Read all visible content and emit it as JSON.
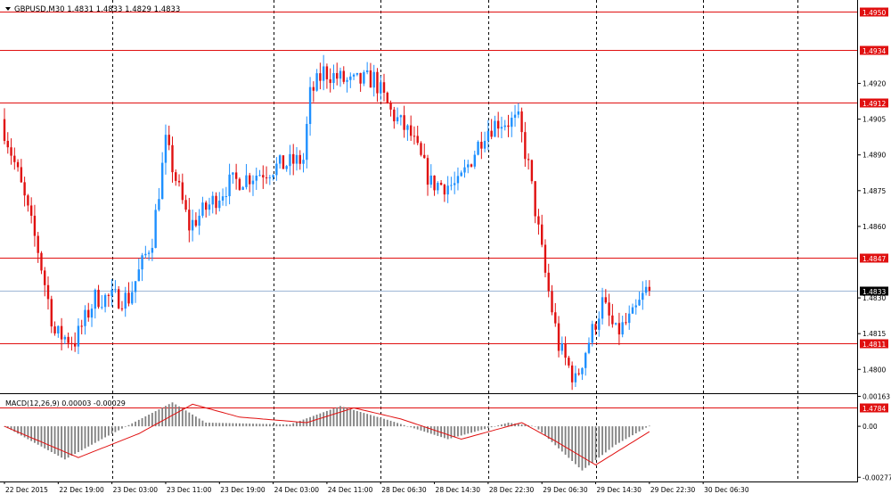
{
  "window": {
    "symbol_header": "GBPUSD,M30  1.4831 1.4833 1.4829 1.4833"
  },
  "indicator": {
    "header": "MACD(12,26,9) 0.00003 -0.00029",
    "scale_labels": [
      {
        "value": 0.00163,
        "label": "0.00163"
      },
      {
        "value": 0.0,
        "label": "0.00"
      },
      {
        "value": -0.00277,
        "label": "-0.00277"
      }
    ]
  },
  "colors": {
    "bull": "#1e90ff",
    "bear": "#e01010",
    "level_line": "#e01010",
    "level_label_bg": "#e01010",
    "current_line": "#9db7d6",
    "current_label_bg": "#000000",
    "grid": "#000000",
    "macd_hist": "#808080",
    "macd_signal": "#e01010"
  },
  "price_axis": {
    "min": 1.479,
    "max": 1.4955,
    "ticks": [
      "1.4920",
      "1.4905",
      "1.4890",
      "1.4875",
      "1.4860",
      "1.4830",
      "1.4815",
      "1.4800"
    ]
  },
  "levels": [
    {
      "price": 1.495,
      "label": "1.4950"
    },
    {
      "price": 1.4934,
      "label": "1.4934"
    },
    {
      "price": 1.4912,
      "label": "1.4912"
    },
    {
      "price": 1.4847,
      "label": "1.4847"
    },
    {
      "price": 1.4811,
      "label": "1.4811"
    },
    {
      "price": 1.4784,
      "label": "1.4784"
    }
  ],
  "current_price": {
    "price": 1.4833,
    "label": "1.4833"
  },
  "time_axis": {
    "labels": [
      "22 Dec 2015",
      "22 Dec 19:00",
      "23 Dec 03:00",
      "23 Dec 11:00",
      "23 Dec 19:00",
      "24 Dec 03:00",
      "24 Dec 11:00",
      "28 Dec 06:30",
      "28 Dec 14:30",
      "28 Dec 22:30",
      "29 Dec 06:30",
      "29 Dec 14:30",
      "29 Dec 22:30",
      "30 Dec 06:30"
    ],
    "bars_per_label": 16,
    "vertical_grid_at_label_index": [
      2,
      5,
      7,
      9,
      11,
      13
    ]
  },
  "chart_data": {
    "type": "candlestick",
    "symbol": "GBPUSD",
    "timeframe": "M30",
    "anchors": [
      {
        "bar": 0,
        "price": 1.4905
      },
      {
        "bar": 5,
        "price": 1.4882
      },
      {
        "bar": 11,
        "price": 1.485
      },
      {
        "bar": 16,
        "price": 1.4815
      },
      {
        "bar": 22,
        "price": 1.4812
      },
      {
        "bar": 28,
        "price": 1.483
      },
      {
        "bar": 38,
        "price": 1.483
      },
      {
        "bar": 45,
        "price": 1.4855
      },
      {
        "bar": 49,
        "price": 1.4895
      },
      {
        "bar": 56,
        "price": 1.486
      },
      {
        "bar": 68,
        "price": 1.4878
      },
      {
        "bar": 82,
        "price": 1.4885
      },
      {
        "bar": 90,
        "price": 1.4888
      },
      {
        "bar": 92,
        "price": 1.4915
      },
      {
        "bar": 96,
        "price": 1.4925
      },
      {
        "bar": 104,
        "price": 1.492
      },
      {
        "bar": 111,
        "price": 1.4922
      },
      {
        "bar": 116,
        "price": 1.4908
      },
      {
        "bar": 122,
        "price": 1.4898
      },
      {
        "bar": 128,
        "price": 1.4878
      },
      {
        "bar": 136,
        "price": 1.4877
      },
      {
        "bar": 144,
        "price": 1.49
      },
      {
        "bar": 148,
        "price": 1.4904
      },
      {
        "bar": 154,
        "price": 1.4904
      },
      {
        "bar": 157,
        "price": 1.4885
      },
      {
        "bar": 162,
        "price": 1.484
      },
      {
        "bar": 166,
        "price": 1.481
      },
      {
        "bar": 171,
        "price": 1.4795
      },
      {
        "bar": 174,
        "price": 1.4808
      },
      {
        "bar": 179,
        "price": 1.4828
      },
      {
        "bar": 183,
        "price": 1.4815
      },
      {
        "bar": 188,
        "price": 1.4822
      },
      {
        "bar": 192,
        "price": 1.4833
      }
    ],
    "last_bar": 192,
    "macd": {
      "histogram_anchors": [
        {
          "bar": 0,
          "value": 0.0
        },
        {
          "bar": 18,
          "value": -0.0018
        },
        {
          "bar": 30,
          "value": -0.0006
        },
        {
          "bar": 50,
          "value": 0.0013
        },
        {
          "bar": 60,
          "value": 0.0002
        },
        {
          "bar": 85,
          "value": 0.0001
        },
        {
          "bar": 100,
          "value": 0.0011
        },
        {
          "bar": 115,
          "value": 0.0003
        },
        {
          "bar": 132,
          "value": -0.0007
        },
        {
          "bar": 150,
          "value": 0.0002
        },
        {
          "bar": 158,
          "value": 0.0
        },
        {
          "bar": 172,
          "value": -0.0024
        },
        {
          "bar": 182,
          "value": -0.001
        },
        {
          "bar": 192,
          "value": 3e-05
        }
      ],
      "signal_anchors": [
        {
          "bar": 0,
          "value": 0.0
        },
        {
          "bar": 22,
          "value": -0.0017
        },
        {
          "bar": 40,
          "value": -0.0004
        },
        {
          "bar": 56,
          "value": 0.0012
        },
        {
          "bar": 70,
          "value": 0.0005
        },
        {
          "bar": 90,
          "value": 0.0002
        },
        {
          "bar": 104,
          "value": 0.001
        },
        {
          "bar": 118,
          "value": 0.0004
        },
        {
          "bar": 136,
          "value": -0.0007
        },
        {
          "bar": 154,
          "value": 0.0002
        },
        {
          "bar": 164,
          "value": -0.0008
        },
        {
          "bar": 176,
          "value": -0.0021
        },
        {
          "bar": 192,
          "value": -0.00029
        }
      ]
    }
  }
}
